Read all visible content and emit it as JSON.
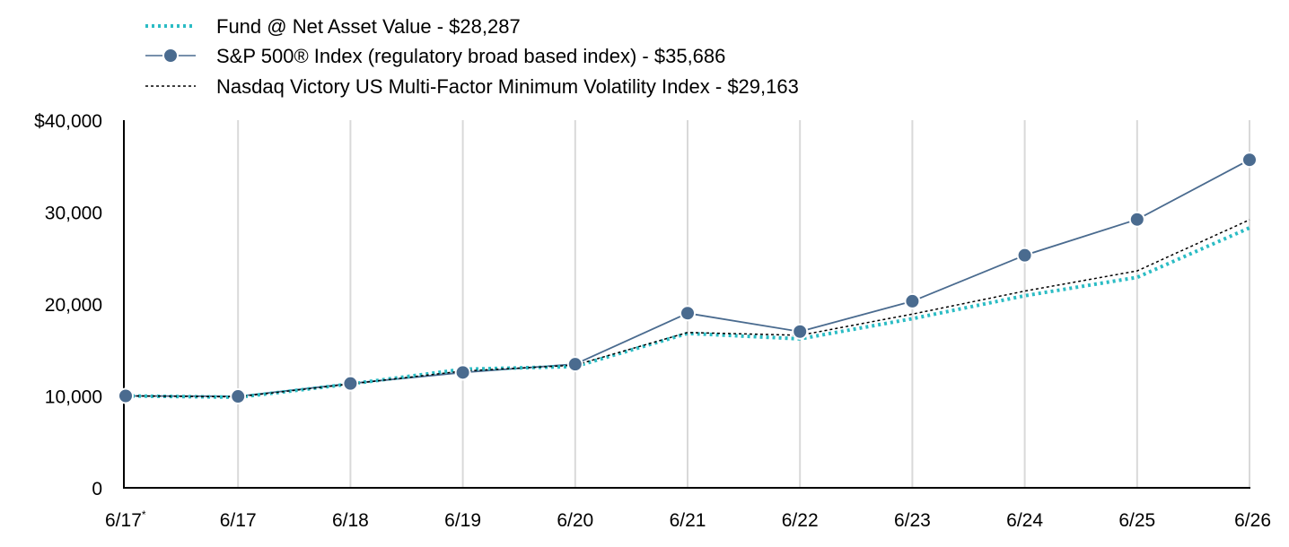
{
  "chart_data": {
    "type": "line",
    "categories": [
      "6/17*",
      "6/17",
      "6/18",
      "6/19",
      "6/20",
      "6/21",
      "6/22",
      "6/23",
      "6/24",
      "6/25",
      "6/26"
    ],
    "y_ticks": [
      "0",
      "10,000",
      "20,000",
      "30,000",
      "$40,000"
    ],
    "ylim": [
      0,
      40000
    ],
    "grid": "vertical",
    "legend_position": "top-left",
    "series": [
      {
        "name": "Fund @ Net Asset Value - $28,287",
        "color": "#2bbcc4",
        "style": "dotted",
        "values": [
          10000,
          9850,
          11300,
          12900,
          13200,
          16800,
          16200,
          18400,
          20900,
          22900,
          28287
        ]
      },
      {
        "name": "S&P 500® Index (regulatory broad based index) - $35,686",
        "color": "#4a6b8f",
        "style": "solid-markers",
        "values": [
          10000,
          9950,
          11350,
          12550,
          13450,
          19000,
          17000,
          20300,
          25300,
          29200,
          35686
        ]
      },
      {
        "name": "Nasdaq Victory US Multi-Factor Minimum Volatility Index - $29,163",
        "color": "#000000",
        "style": "dashed",
        "values": [
          10000,
          9900,
          11300,
          12700,
          13350,
          16900,
          16600,
          18900,
          21400,
          23600,
          29163
        ]
      }
    ]
  }
}
